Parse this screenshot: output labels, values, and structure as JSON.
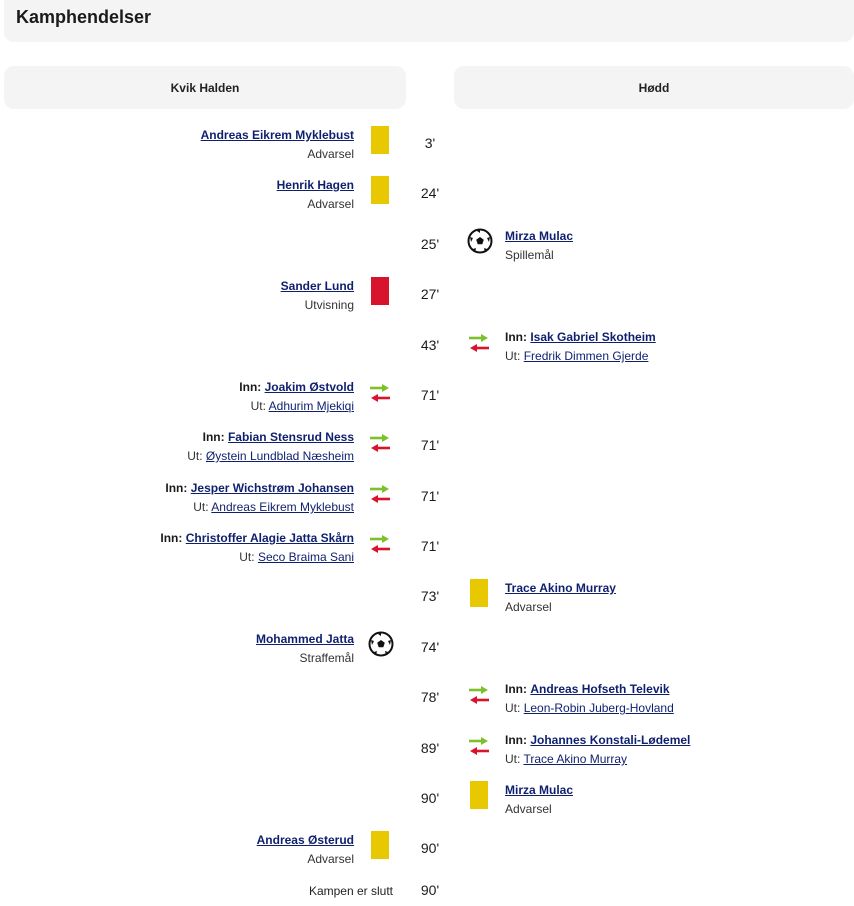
{
  "header": {
    "title": "Kamphendelser"
  },
  "teams": {
    "home": "Kvik Halden",
    "away": "Hødd"
  },
  "colors": {
    "yellow_card": "#e8c800",
    "red_card": "#d7142c",
    "sub_in": "#7cc12a",
    "sub_out": "#d7142c",
    "link": "#0e1f6e"
  },
  "events": [
    {
      "minute": "3'",
      "side": "home",
      "type": "yellow-card",
      "player": "Andreas Eikrem Myklebust",
      "desc": "Advarsel"
    },
    {
      "minute": "24'",
      "side": "home",
      "type": "yellow-card",
      "player": "Henrik Hagen",
      "desc": "Advarsel"
    },
    {
      "minute": "25'",
      "side": "away",
      "type": "goal",
      "player": "Mirza Mulac",
      "desc": "Spillemål"
    },
    {
      "minute": "27'",
      "side": "home",
      "type": "red-card",
      "player": "Sander Lund",
      "desc": "Utvisning"
    },
    {
      "minute": "43'",
      "side": "away",
      "type": "substitution",
      "in_label": "Inn:",
      "in": "Isak Gabriel Skotheim",
      "out_label": "Ut:",
      "out": "Fredrik Dimmen Gjerde"
    },
    {
      "minute": "71'",
      "side": "home",
      "type": "substitution",
      "in_label": "Inn:",
      "in": "Joakim Østvold",
      "out_label": "Ut:",
      "out": "Adhurim Mjekiqi"
    },
    {
      "minute": "71'",
      "side": "home",
      "type": "substitution",
      "in_label": "Inn:",
      "in": "Fabian Stensrud Ness",
      "out_label": "Ut:",
      "out": "Øystein Lundblad Næsheim"
    },
    {
      "minute": "71'",
      "side": "home",
      "type": "substitution",
      "in_label": "Inn:",
      "in": "Jesper Wichstrøm Johansen",
      "out_label": "Ut:",
      "out": "Andreas Eikrem Myklebust"
    },
    {
      "minute": "71'",
      "side": "home",
      "type": "substitution",
      "in_label": "Inn:",
      "in": "Christoffer Alagie Jatta Skårn",
      "out_label": "Ut:",
      "out": "Seco Braima Sani"
    },
    {
      "minute": "73'",
      "side": "away",
      "type": "yellow-card",
      "player": "Trace Akino Murray",
      "desc": "Advarsel"
    },
    {
      "minute": "74'",
      "side": "home",
      "type": "goal",
      "player": "Mohammed Jatta",
      "desc": "Straffemål"
    },
    {
      "minute": "78'",
      "side": "away",
      "type": "substitution",
      "in_label": "Inn:",
      "in": "Andreas Hofseth Televik",
      "out_label": "Ut:",
      "out": "Leon-Robin Juberg-Hovland"
    },
    {
      "minute": "89'",
      "side": "away",
      "type": "substitution",
      "in_label": "Inn:",
      "in": "Johannes Konstali-Lødemel",
      "out_label": "Ut:",
      "out": "Trace Akino Murray"
    },
    {
      "minute": "90'",
      "side": "away",
      "type": "yellow-card",
      "player": "Mirza Mulac",
      "desc": "Advarsel"
    },
    {
      "minute": "90'",
      "side": "home",
      "type": "yellow-card",
      "player": "Andreas Østerud",
      "desc": "Advarsel"
    },
    {
      "minute": "90'",
      "side": "home",
      "type": "end",
      "desc": "Kampen er slutt"
    }
  ]
}
